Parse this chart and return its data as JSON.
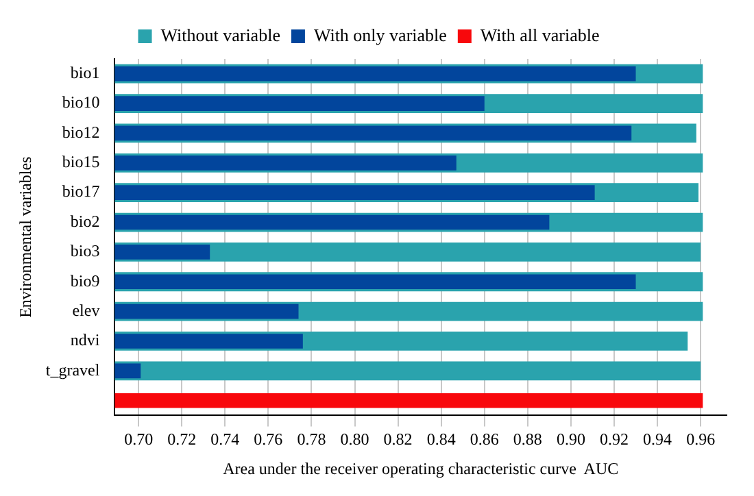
{
  "chart_data": {
    "type": "bar",
    "orientation": "horizontal",
    "xlabel": "Area under the receiver operating characteristic curve  AUC",
    "ylabel": "Environmental variables",
    "categories": [
      "bio1",
      "bio10",
      "bio12",
      "bio15",
      "bio17",
      "bio2",
      "bio3",
      "bio9",
      "elev",
      "ndvi",
      "t_gravel",
      null
    ],
    "series": [
      {
        "name": "Without variable",
        "color": "#2aa3ad",
        "values": [
          0.961,
          0.961,
          0.958,
          0.961,
          0.959,
          0.961,
          0.96,
          0.961,
          0.961,
          0.954,
          0.96,
          null
        ]
      },
      {
        "name": "With only variable",
        "color": "#02459c",
        "values": [
          0.93,
          0.86,
          0.928,
          0.847,
          0.911,
          0.89,
          0.733,
          0.93,
          0.774,
          0.776,
          0.701,
          null
        ]
      },
      {
        "name": "With all variable",
        "color": "#f8080c",
        "values": [
          null,
          null,
          null,
          null,
          null,
          null,
          null,
          null,
          null,
          null,
          null,
          0.961
        ]
      }
    ],
    "xlim": [
      0.689,
      0.972
    ],
    "xticks": [
      {
        "value": 0.7,
        "label": "0.70"
      },
      0.72,
      0.74,
      0.76,
      0.78,
      {
        "value": 0.8,
        "label": "0.80"
      },
      0.82,
      0.84,
      0.86,
      0.88,
      {
        "value": 0.9,
        "label": "0.90"
      },
      0.92,
      0.94,
      0.96
    ],
    "grid": "x",
    "legend": "top"
  }
}
